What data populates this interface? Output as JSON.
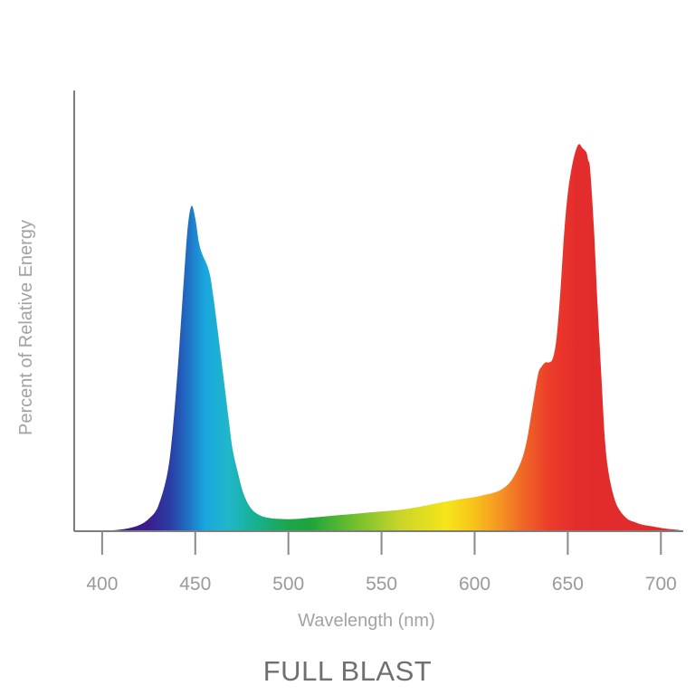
{
  "chart_data": {
    "type": "area",
    "title": "FULL BLAST",
    "xlabel": "Wavelength (nm)",
    "ylabel": "Percent of Relative Energy",
    "xlim": [
      385,
      712
    ],
    "ylim": [
      0,
      100
    ],
    "xticks": [
      "400",
      "450",
      "500",
      "550",
      "600",
      "650",
      "700"
    ],
    "yticks": [],
    "grid": false,
    "legend": "none",
    "series": [
      {
        "x": [
          395,
          400,
          405,
          410,
          415,
          420,
          425,
          430,
          435,
          438,
          441,
          444,
          446,
          448,
          450,
          452,
          454,
          456,
          458,
          460,
          462,
          465,
          468,
          470,
          473,
          476,
          480,
          485,
          490,
          495,
          500,
          505,
          510,
          520,
          530,
          540,
          550,
          560,
          570,
          580,
          590,
          600,
          605,
          610,
          615,
          620,
          625,
          628,
          631,
          634,
          636,
          638,
          640,
          642,
          644,
          646,
          648,
          650,
          652,
          654,
          656,
          658,
          660,
          661,
          662,
          664,
          666,
          668,
          670,
          672,
          675,
          678,
          682,
          686,
          690,
          695,
          700,
          705,
          710
        ],
        "values": [
          0,
          0.1,
          0.2,
          0.4,
          0.8,
          1.5,
          3,
          6,
          14,
          25,
          42,
          62,
          74,
          79,
          76,
          70,
          67,
          65,
          62,
          56,
          49,
          38,
          27,
          20,
          14,
          9,
          5.5,
          3.8,
          3.2,
          3.0,
          2.9,
          3.0,
          3.2,
          3.6,
          4.0,
          4.4,
          4.8,
          5.2,
          5.9,
          6.8,
          7.6,
          8.3,
          8.8,
          9.3,
          10.3,
          12.5,
          17,
          22,
          30,
          38,
          40,
          41,
          41,
          42,
          47,
          58,
          72,
          82,
          88,
          92,
          94,
          93,
          92,
          90,
          88,
          74,
          55,
          38,
          22,
          14,
          8,
          5,
          3,
          2.2,
          1.6,
          1.2,
          0.8,
          0.5,
          0.3
        ]
      }
    ]
  }
}
